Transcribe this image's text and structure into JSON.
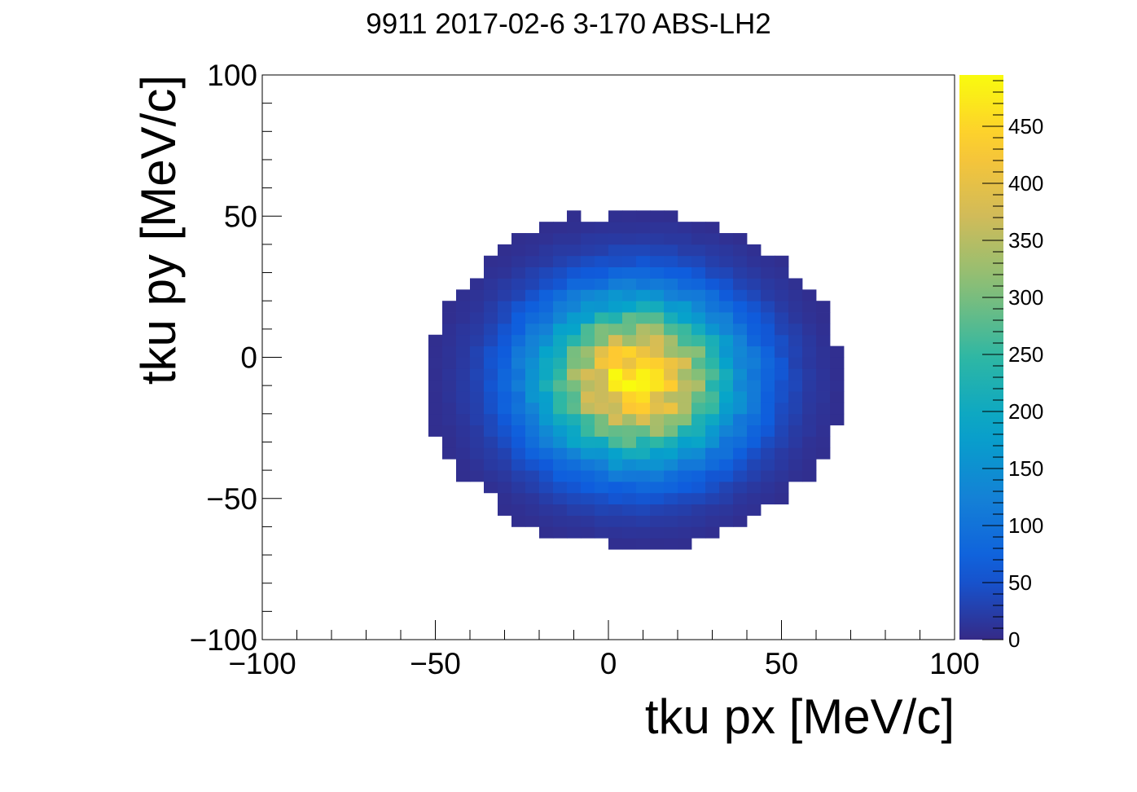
{
  "chart_data": {
    "type": "heatmap",
    "title": "9911 2017-02-6 3-170 ABS-LH2",
    "xlabel": "tku px [MeV/c]",
    "ylabel": "tku py [MeV/c]",
    "xlim": [
      -100,
      100
    ],
    "ylim": [
      -100,
      100
    ],
    "bin_width": 4,
    "x_ticks": [
      -100,
      -50,
      0,
      50,
      100
    ],
    "y_ticks": [
      -100,
      -50,
      0,
      50,
      100
    ],
    "x_tick_labels": [
      "−100",
      "−50",
      "0",
      "50",
      "100"
    ],
    "y_tick_labels": [
      "−100",
      "−50",
      "0",
      "50",
      "100"
    ],
    "colorbar": {
      "zlim": [
        0,
        495
      ],
      "ticks": [
        0,
        50,
        100,
        150,
        200,
        250,
        300,
        350,
        400,
        450
      ],
      "tick_labels": [
        "0",
        "50",
        "100",
        "150",
        "200",
        "250",
        "300",
        "350",
        "400",
        "450"
      ],
      "palette": [
        "#352a87",
        "#0f5cdd",
        "#1481d6",
        "#06a4ca",
        "#2eb7a4",
        "#87bf77",
        "#d1bb59",
        "#fec832",
        "#f9fb0e"
      ]
    },
    "distribution": {
      "center": [
        8,
        -8
      ],
      "sigma": [
        20,
        20
      ],
      "peak": 470,
      "support_x": [
        -62,
        66
      ],
      "support_y": [
        -70,
        72
      ]
    }
  }
}
